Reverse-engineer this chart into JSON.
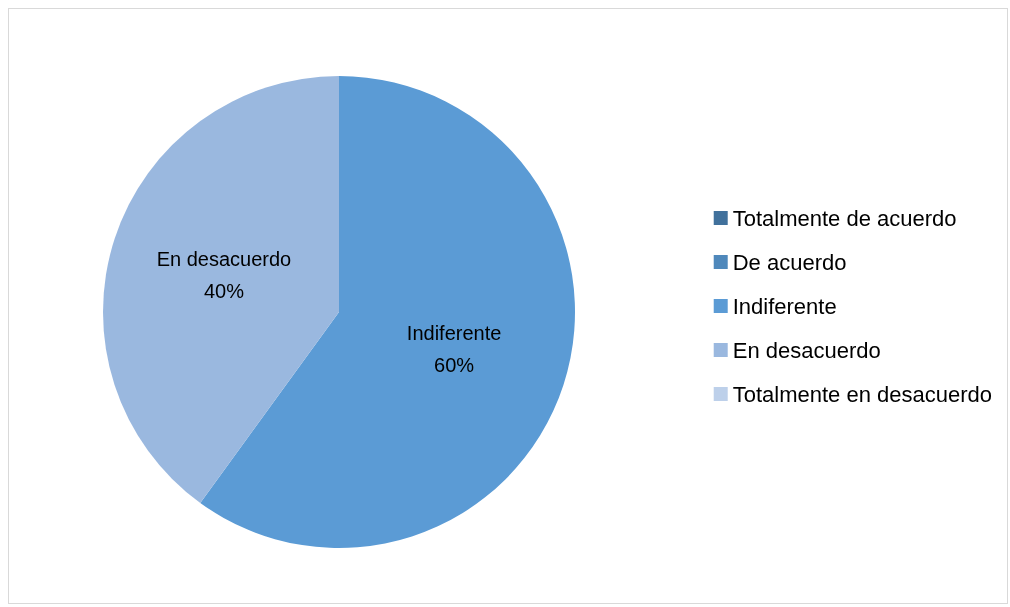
{
  "chart_data": {
    "type": "pie",
    "categories": [
      "Totalmente de acuerdo",
      "De acuerdo",
      "Indiferente",
      "En desacuerdo",
      "Totalmente en desacuerdo"
    ],
    "values": [
      0,
      0,
      60,
      40,
      0
    ],
    "colors": [
      "#41719c",
      "#4f88bb",
      "#5b9bd5",
      "#9ab8df",
      "#bdd0ea"
    ],
    "value_labels": [
      null,
      null,
      "60%",
      "40%",
      null
    ],
    "legend": "right"
  }
}
